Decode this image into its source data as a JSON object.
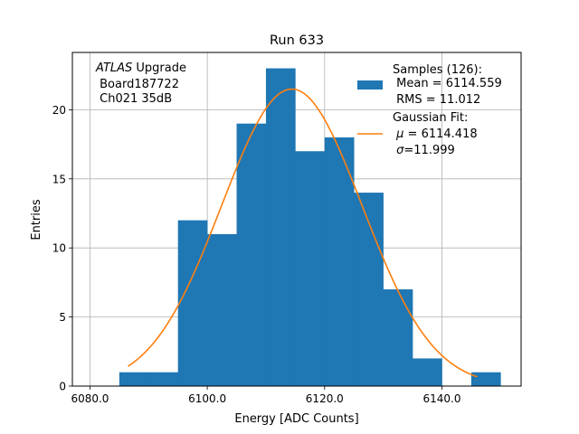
{
  "chart_data": {
    "type": "bar",
    "title": "Run 633",
    "xlabel": "Energy [ADC Counts]",
    "ylabel": "Entries",
    "xlim": [
      6077.0,
      6153.5
    ],
    "ylim": [
      0,
      24.15
    ],
    "grid": true,
    "x_ticks": [
      6080.0,
      6100.0,
      6120.0,
      6140.0
    ],
    "x_tick_labels": [
      "6080.0",
      "6100.0",
      "6120.0",
      "6140.0"
    ],
    "y_ticks": [
      0,
      5,
      10,
      15,
      20
    ],
    "y_tick_labels": [
      "0",
      "5",
      "10",
      "15",
      "20"
    ],
    "annotation": {
      "line1_italic": "ATLAS",
      "line1_rest": " Upgrade",
      "line2": " Board187722",
      "line3": " Ch021 35dB"
    },
    "legend_position": "top-right",
    "legend": {
      "samples": {
        "title": "Samples (126):",
        "mean_text": " Mean = 6114.559",
        "rms_text": " RMS = 11.012",
        "color": "#1f77b4"
      },
      "fit": {
        "title": "Gaussian Fit:",
        "mu_text": " = 6114.418",
        "sigma_text": "=11.999",
        "color": "#ff7f0e"
      }
    },
    "histogram": {
      "color": "#1f77b4",
      "bin_edges": [
        6085,
        6090,
        6095,
        6100,
        6105,
        6110,
        6115,
        6120,
        6125,
        6130,
        6135,
        6140,
        6145,
        6150
      ],
      "counts": [
        1,
        1,
        12,
        11,
        19,
        23,
        17,
        18,
        14,
        7,
        2,
        0,
        1
      ]
    },
    "gaussian_fit": {
      "color": "#ff7f0e",
      "mu": 6114.418,
      "sigma": 11.999,
      "amplitude": 21.5,
      "x_range": [
        6086.5,
        6146.0
      ]
    }
  }
}
